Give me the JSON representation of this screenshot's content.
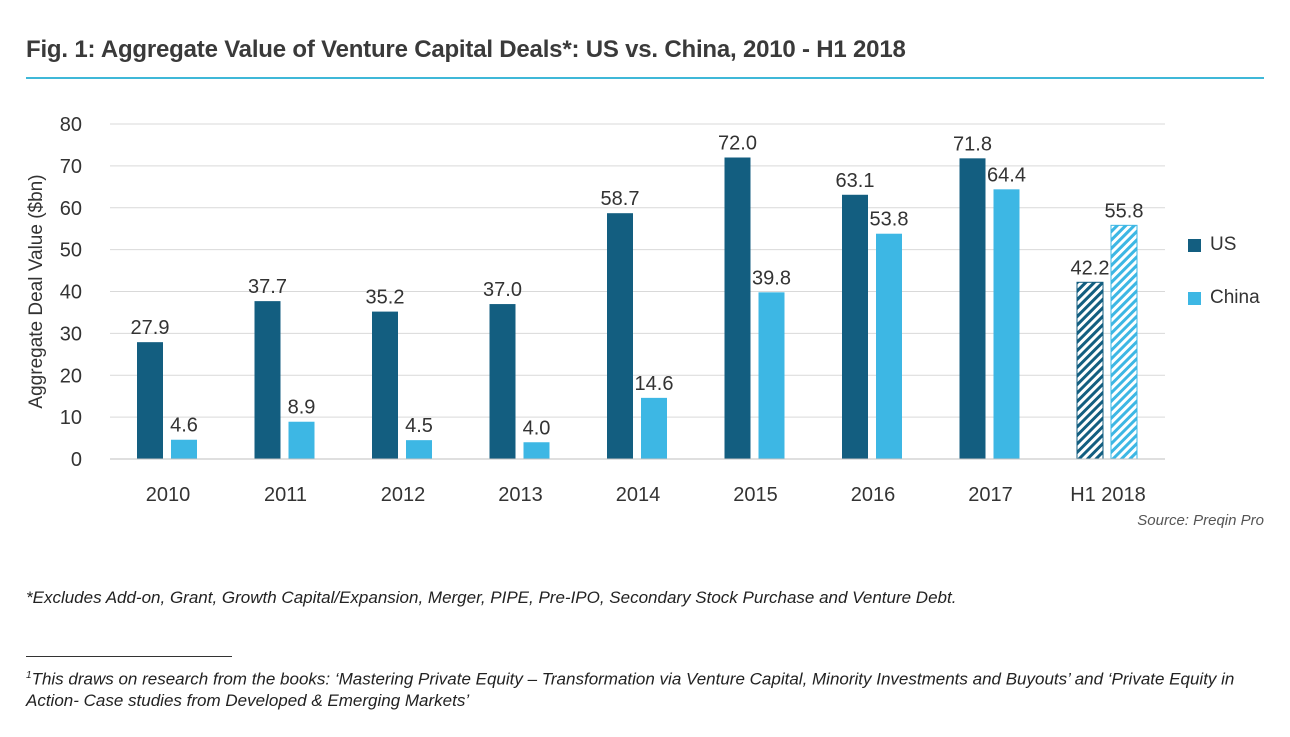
{
  "title": "Fig. 1: Aggregate Value of Venture Capital Deals*: US vs. China, 2010 - H1 2018",
  "source": "Source: Preqin Pro",
  "footnote": "*Excludes Add-on, Grant, Growth Capital/Expansion, Merger, PIPE, Pre-IPO, Secondary Stock Purchase and Venture Debt.",
  "footnote2_mark": "1",
  "footnote2": "This draws on research from the books: ‘Mastering Private Equity – Transformation via Venture Capital, Minority Investments and Buyouts’ and ‘Private Equity in Action- Case studies from Developed & Emerging Markets’",
  "colors": {
    "us": "#135e80",
    "china": "#3db7e4",
    "grid": "#d9d9d9",
    "axis": "#bfbfbf"
  },
  "chart_data": {
    "type": "bar",
    "categories": [
      "2010",
      "2011",
      "2012",
      "2013",
      "2014",
      "2015",
      "2016",
      "2017",
      "H1 2018"
    ],
    "series": [
      {
        "name": "US",
        "values": [
          27.9,
          37.7,
          35.2,
          37.0,
          58.7,
          72.0,
          63.1,
          71.8,
          42.2
        ]
      },
      {
        "name": "China",
        "values": [
          4.6,
          8.9,
          4.5,
          4.0,
          14.6,
          39.8,
          53.8,
          64.4,
          55.8
        ]
      }
    ],
    "data_labels": [
      [
        "27.9",
        "37.7",
        "35.2",
        "37.0",
        "58.7",
        "72.0",
        "63.1",
        "71.8",
        "42.2"
      ],
      [
        "4.6",
        "8.9",
        "4.5",
        "4.0",
        "14.6",
        "39.8",
        "53.8",
        "64.4",
        "55.8"
      ]
    ],
    "hatched_categories": [
      "H1 2018"
    ],
    "ylabel": "Aggregate Deal Value ($bn)",
    "xlabel": "",
    "ylim": [
      0,
      80
    ],
    "yticks": [
      0,
      10,
      20,
      30,
      40,
      50,
      60,
      70,
      80
    ],
    "grid": true,
    "legend_position": "right"
  }
}
